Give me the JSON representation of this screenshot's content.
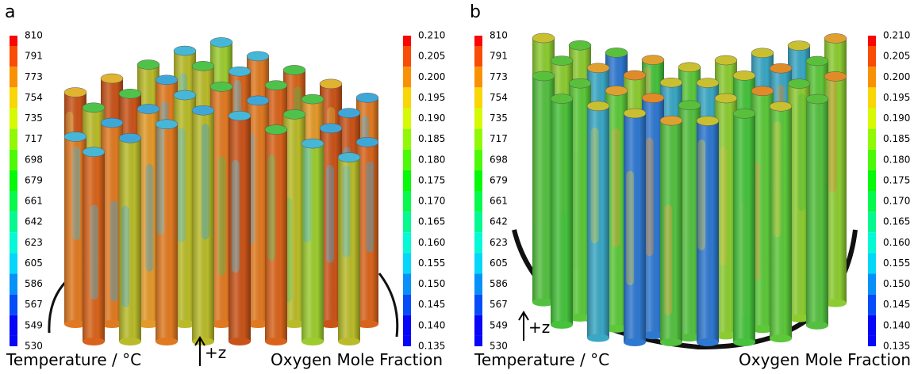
{
  "panels": [
    {
      "label": "a",
      "temperature_scale": {
        "title": "Temperature / °C",
        "ticks": [
          "810",
          "791",
          "773",
          "754",
          "735",
          "717",
          "698",
          "679",
          "661",
          "642",
          "623",
          "605",
          "586",
          "567",
          "549",
          "530"
        ]
      },
      "oxygen_scale": {
        "title": "Oxygen Mole Fraction",
        "ticks": [
          "0.210",
          "0.205",
          "0.200",
          "0.195",
          "0.190",
          "0.185",
          "0.180",
          "0.175",
          "0.170",
          "0.165",
          "0.160",
          "0.155",
          "0.150",
          "0.145",
          "0.140",
          "0.135"
        ]
      },
      "axis_label": "+z"
    },
    {
      "label": "b",
      "temperature_scale": {
        "title": "Temperature / °C",
        "ticks": [
          "810",
          "791",
          "773",
          "754",
          "735",
          "717",
          "698",
          "679",
          "661",
          "642",
          "623",
          "605",
          "586",
          "567",
          "549",
          "530"
        ]
      },
      "oxygen_scale": {
        "title": "Oxygen Mole Fraction",
        "ticks": [
          "0.210",
          "0.205",
          "0.200",
          "0.195",
          "0.190",
          "0.185",
          "0.180",
          "0.175",
          "0.170",
          "0.165",
          "0.160",
          "0.155",
          "0.150",
          "0.145",
          "0.140",
          "0.135"
        ]
      },
      "axis_label": "+z"
    }
  ]
}
